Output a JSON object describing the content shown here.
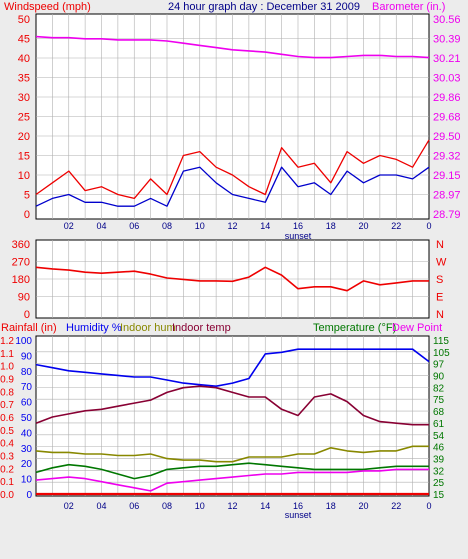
{
  "title": "24 hour graph day : December 31 2009",
  "colors": {
    "wind": "#ee0000",
    "gust_avg": "#0000cc",
    "baro": "#ee00ee",
    "dir": "#ee0000",
    "rain": "#ee0000",
    "humidity": "#0000ee",
    "indoor_hum": "#888800",
    "indoor_temp": "#880033",
    "temp": "#007700",
    "dew": "#ee00ee",
    "grid": "#b0b0b0"
  },
  "chart_data": [
    {
      "type": "line",
      "name": "wind-baro",
      "left_label": "Windspeed (mph)",
      "right_label": "Barometer (in.)",
      "left_ticks": [
        "0",
        "5",
        "10",
        "15",
        "20",
        "25",
        "30",
        "35",
        "40",
        "45",
        "50"
      ],
      "right_ticks": [
        "28.79",
        "28.97",
        "29.15",
        "29.32",
        "29.50",
        "29.68",
        "29.86",
        "30.03",
        "30.21",
        "30.39",
        "30.56"
      ],
      "x_ticks": [
        "02",
        "04",
        "06",
        "08",
        "10",
        "12",
        "14",
        "16",
        "18",
        "20",
        "22",
        "0"
      ],
      "x_note": "sunset",
      "ylim_left": [
        0,
        50
      ],
      "ylim_right": [
        28.79,
        30.56
      ],
      "x": [
        0,
        1,
        2,
        3,
        4,
        5,
        6,
        7,
        8,
        9,
        10,
        11,
        12,
        13,
        14,
        15,
        16,
        17,
        18,
        19,
        20,
        21,
        22,
        23,
        24
      ],
      "series": [
        {
          "key": "wind",
          "axis": "left",
          "values": [
            5,
            8,
            11,
            6,
            7,
            5,
            4,
            9,
            5,
            15,
            16,
            12,
            10,
            7,
            5,
            17,
            12,
            13,
            8,
            16,
            13,
            15,
            14,
            12,
            19
          ]
        },
        {
          "key": "gust_avg",
          "axis": "left",
          "values": [
            2,
            4,
            5,
            3,
            3,
            2,
            2,
            4,
            2,
            11,
            12,
            8,
            5,
            4,
            3,
            12,
            7,
            8,
            5,
            11,
            8,
            10,
            10,
            9,
            12
          ]
        },
        {
          "key": "baro",
          "axis": "right",
          "values": [
            30.4,
            30.39,
            30.39,
            30.38,
            30.38,
            30.37,
            30.37,
            30.37,
            30.36,
            30.34,
            30.32,
            30.3,
            30.28,
            30.27,
            30.26,
            30.24,
            30.22,
            30.21,
            30.21,
            30.22,
            30.23,
            30.23,
            30.22,
            30.22,
            30.21
          ]
        }
      ]
    },
    {
      "type": "line",
      "name": "wind-direction",
      "left_ticks": [
        "0",
        "90",
        "180",
        "270",
        "360"
      ],
      "right_ticks": [
        "N",
        "E",
        "S",
        "W",
        "N"
      ],
      "ylim": [
        0,
        360
      ],
      "x": [
        0,
        1,
        2,
        3,
        4,
        5,
        6,
        7,
        8,
        9,
        10,
        11,
        12,
        13,
        14,
        15,
        16,
        17,
        18,
        19,
        20,
        21,
        22,
        23,
        24
      ],
      "series": [
        {
          "key": "dir",
          "values": [
            240,
            232,
            226,
            215,
            210,
            215,
            220,
            205,
            185,
            178,
            170,
            170,
            168,
            190,
            240,
            200,
            130,
            140,
            140,
            120,
            170,
            150,
            160,
            170,
            170
          ]
        }
      ]
    },
    {
      "type": "line",
      "name": "rain-hum-temp",
      "left_label_rain": "Rainfall (in)",
      "left_label_hum": "Humidity %",
      "label_indoor_hum": "Indoor hum",
      "label_indoor_temp": "Indoor temp",
      "right_label_temp": "Temperature (°F)",
      "right_label_dew": "Dew Point",
      "rain_ticks": [
        "0.0",
        "0.1",
        "0.2",
        "0.3",
        "0.4",
        "0.5",
        "0.6",
        "0.7",
        "0.8",
        "0.9",
        "1.0",
        "1.1",
        "1.2"
      ],
      "hum_ticks": [
        "0",
        "10",
        "20",
        "30",
        "40",
        "50",
        "60",
        "70",
        "80",
        "90",
        "100"
      ],
      "temp_ticks": [
        "15",
        "25",
        "32",
        "39",
        "46",
        "54",
        "61",
        "68",
        "75",
        "82",
        "90",
        "97",
        "105",
        "115"
      ],
      "x_ticks": [
        "02",
        "04",
        "06",
        "08",
        "10",
        "12",
        "14",
        "16",
        "18",
        "20",
        "22",
        "0"
      ],
      "x_note": "sunset",
      "ylim_hum": [
        0,
        100
      ],
      "ylim_temp": [
        15,
        115
      ],
      "x": [
        0,
        1,
        2,
        3,
        4,
        5,
        6,
        7,
        8,
        9,
        10,
        11,
        12,
        13,
        14,
        15,
        16,
        17,
        18,
        19,
        20,
        21,
        22,
        23,
        24
      ],
      "series": [
        {
          "key": "humidity",
          "axis": "hum",
          "values": [
            84,
            82,
            80,
            79,
            78,
            77,
            76,
            76,
            74,
            72,
            71,
            70,
            72,
            75,
            91,
            92,
            94,
            94,
            94,
            94,
            94,
            94,
            94,
            94,
            86
          ]
        },
        {
          "key": "indoor_temp",
          "axis": "temp",
          "values": [
            61,
            65,
            67,
            69,
            70,
            72,
            74,
            76,
            81,
            84,
            85,
            84,
            81,
            78,
            78,
            70,
            66,
            78,
            80,
            75,
            66,
            62,
            61,
            60,
            60
          ]
        },
        {
          "key": "indoor_hum",
          "axis": "hum",
          "values": [
            28,
            27,
            27,
            26,
            26,
            25,
            25,
            26,
            23,
            22,
            22,
            21,
            21,
            24,
            24,
            24,
            26,
            26,
            30,
            28,
            27,
            28,
            28,
            31,
            31
          ]
        },
        {
          "key": "temp",
          "axis": "temp",
          "values": [
            29,
            32,
            34,
            33,
            31,
            28,
            25,
            27,
            31,
            32,
            33,
            33,
            34,
            35,
            34,
            33,
            32,
            31,
            31,
            31,
            31,
            32,
            33,
            33,
            33
          ]
        },
        {
          "key": "dew",
          "axis": "temp",
          "values": [
            24,
            25,
            26,
            25,
            23,
            21,
            19,
            17,
            22,
            23,
            24,
            25,
            26,
            27,
            28,
            28,
            29,
            29,
            29,
            29,
            30,
            30,
            31,
            31,
            31
          ]
        },
        {
          "key": "rain",
          "axis": "hum",
          "values": [
            0,
            0,
            0,
            0,
            0,
            0,
            0,
            0,
            0,
            0,
            0,
            0,
            0,
            0,
            0,
            0,
            0,
            0,
            0,
            0,
            0,
            0,
            0,
            0,
            0
          ]
        }
      ]
    }
  ]
}
